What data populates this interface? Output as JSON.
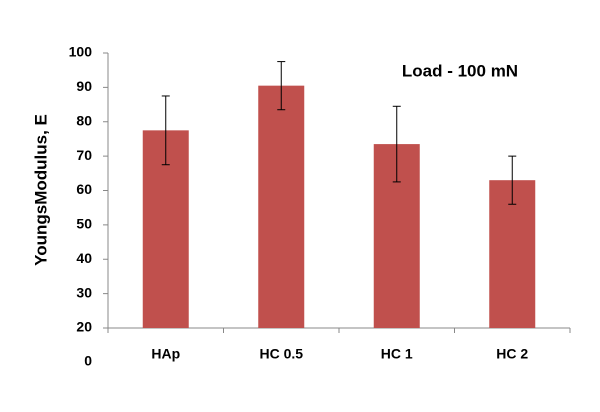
{
  "chart_data": {
    "type": "bar",
    "annotation": "Load - 100 mN",
    "y_label": "YoungsModulus, E",
    "categories": [
      "HAp",
      "HC 0.5",
      "HC 1",
      "HC 2"
    ],
    "values": [
      77.5,
      90.5,
      73.5,
      63
    ],
    "errors": [
      10,
      7,
      11,
      7
    ],
    "color": "#c0504d",
    "ylim": [
      20,
      100
    ],
    "yticks": [
      20,
      30,
      40,
      50,
      60,
      70,
      80,
      90,
      100
    ],
    "y_origin_label": "0",
    "grid": false
  }
}
